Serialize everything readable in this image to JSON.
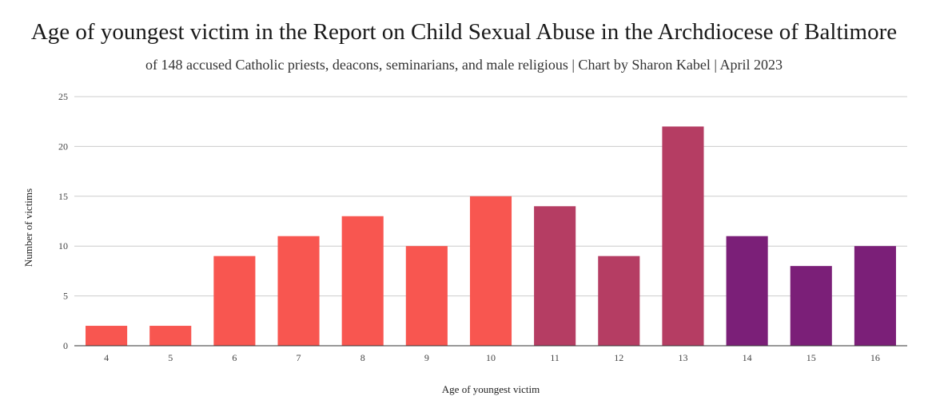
{
  "chart_data": {
    "type": "bar",
    "title": "Age of youngest victim in the Report on Child Sexual Abuse in the Archdiocese of Baltimore",
    "subtitle": "of 148 accused Catholic priests, deacons, seminarians, and male religious | Chart by Sharon Kabel | April 2023",
    "xlabel": "Age of youngest victim",
    "ylabel": "Number of victims",
    "categories": [
      "4",
      "5",
      "6",
      "7",
      "8",
      "9",
      "10",
      "11",
      "12",
      "13",
      "14",
      "15",
      "16"
    ],
    "values": [
      2,
      2,
      9,
      11,
      13,
      10,
      15,
      14,
      9,
      22,
      11,
      8,
      10
    ],
    "bar_colors": [
      "#f85650",
      "#f85650",
      "#f85650",
      "#f85650",
      "#f85650",
      "#f85650",
      "#f85650",
      "#b53d63",
      "#b53d63",
      "#b53d63",
      "#7b1f78",
      "#7b1f78",
      "#7b1f78"
    ],
    "ylim": [
      0,
      25
    ],
    "yticks": [
      "0",
      "5",
      "10",
      "15",
      "20",
      "25"
    ],
    "grid": true,
    "legend": "none"
  }
}
